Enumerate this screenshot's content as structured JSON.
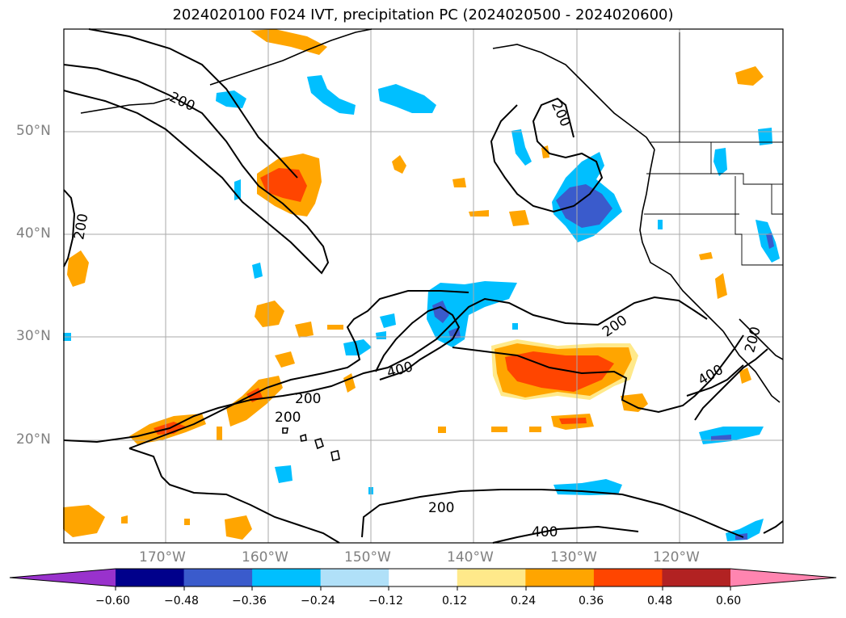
{
  "title": "2024020100 F024 IVT, precipitation PC (2024020500 - 2024020600)",
  "lat_labels": [
    "50°N",
    "40°N",
    "30°N",
    "20°N"
  ],
  "lon_labels": [
    "170°W",
    "160°W",
    "150°W",
    "140°W",
    "130°W",
    "120°W"
  ],
  "contour_labels": [
    "200",
    "200",
    "200",
    "200",
    "200",
    "200",
    "200",
    "400",
    "400",
    "400",
    "200"
  ],
  "colorbar": {
    "ticks": [
      "−0.60",
      "−0.48",
      "−0.36",
      "−0.24",
      "−0.12",
      "0.12",
      "0.24",
      "0.36",
      "0.48",
      "0.60"
    ],
    "colors": [
      "#9932cc",
      "#00008b",
      "#3a5bcc",
      "#00bfff",
      "#b0e0f8",
      "#ffffff",
      "#ffe98a",
      "#ffa500",
      "#ff4500",
      "#b22222",
      "#ff85b0"
    ]
  },
  "colors": {
    "land_outline": "#000000",
    "grid": "#aaaaaa",
    "ivt_contour": "#000000"
  }
}
